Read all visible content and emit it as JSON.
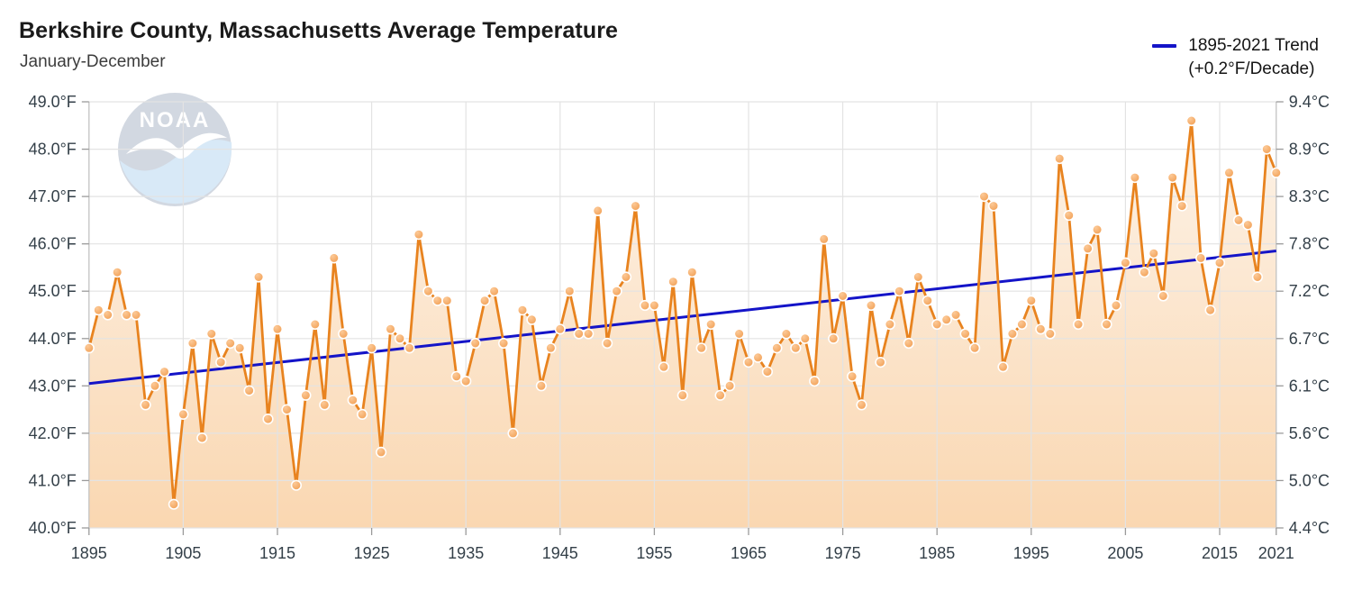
{
  "header": {
    "title": "Berkshire County, Massachusetts Average Temperature",
    "subtitle": "January-December"
  },
  "legend": {
    "line1": "1895-2021 Trend",
    "line2": "(+0.2°F/Decade)",
    "swatch_color": "#1414c8"
  },
  "watermark": {
    "name": "noaa-logo",
    "text": "NOAA"
  },
  "chart_data": {
    "type": "line",
    "title": "Berkshire County, Massachusetts Average Temperature",
    "subtitle": "January-December",
    "x_start": 1895,
    "x_end": 2021,
    "x_ticks": [
      1895,
      1905,
      1915,
      1925,
      1935,
      1945,
      1955,
      1965,
      1975,
      1985,
      1995,
      2005,
      2015,
      2021
    ],
    "y_min": 40,
    "y_max": 49,
    "y_axis_left": {
      "unit": "°F",
      "labels": [
        "49.0°F",
        "48.0°F",
        "47.0°F",
        "46.0°F",
        "45.0°F",
        "44.0°F",
        "43.0°F",
        "42.0°F",
        "41.0°F",
        "40.0°F"
      ]
    },
    "y_axis_right": {
      "unit": "°C",
      "labels": [
        "9.4°C",
        "8.9°C",
        "8.3°C",
        "7.8°C",
        "7.2°C",
        "6.7°C",
        "6.1°C",
        "5.6°C",
        "5.0°C",
        "4.4°C"
      ]
    },
    "series": [
      {
        "name": "Average Temperature (°F)",
        "values": [
          43.8,
          44.6,
          44.5,
          45.4,
          44.5,
          44.5,
          42.6,
          43.0,
          43.3,
          40.5,
          42.4,
          43.9,
          41.9,
          44.1,
          43.5,
          43.9,
          43.8,
          42.9,
          45.3,
          42.3,
          44.2,
          42.5,
          40.9,
          42.8,
          44.3,
          42.6,
          45.7,
          44.1,
          42.7,
          42.4,
          43.8,
          41.6,
          44.2,
          44.0,
          43.8,
          46.2,
          45.0,
          44.8,
          44.8,
          43.2,
          43.1,
          43.9,
          44.8,
          45.0,
          43.9,
          42.0,
          44.6,
          44.4,
          43.0,
          43.8,
          44.2,
          45.0,
          44.1,
          44.1,
          46.7,
          43.9,
          45.0,
          45.3,
          46.8,
          44.7,
          44.7,
          43.4,
          45.2,
          42.8,
          45.4,
          43.8,
          44.3,
          42.8,
          43.0,
          44.1,
          43.5,
          43.6,
          43.3,
          43.8,
          44.1,
          43.8,
          44.0,
          43.1,
          46.1,
          44.0,
          44.9,
          43.2,
          42.6,
          44.7,
          43.5,
          44.3,
          45.0,
          43.9,
          45.3,
          44.8,
          44.3,
          44.4,
          44.5,
          44.1,
          43.8,
          47.0,
          46.8,
          43.4,
          44.1,
          44.3,
          44.8,
          44.2,
          44.1,
          47.8,
          46.6,
          44.3,
          45.9,
          46.3,
          44.3,
          44.7,
          45.6,
          47.4,
          45.4,
          45.8,
          44.9,
          47.4,
          46.8,
          48.6,
          45.7,
          44.6,
          45.6,
          47.5,
          46.5,
          46.4,
          45.3,
          48.0,
          47.5
        ]
      }
    ],
    "trend": {
      "name": "1895-2021 Trend",
      "rate": "+0.2°F/Decade",
      "start_year": 1895,
      "start_value": 43.05,
      "end_year": 2021,
      "end_value": 45.85
    },
    "grid": true,
    "legend_position": "top-right",
    "colors": {
      "line": "#e8831f",
      "marker_light": "#fcc997",
      "marker_dark": "#f0994a",
      "marker_edge": "#ffffff",
      "area_top": "#fdf4ea",
      "area_bottom": "#fad7b1",
      "trend": "#1414c8",
      "grid": "#e3e3e3",
      "axis": "#c2c2c2",
      "tick": "#9a9a9a",
      "tick_label": "#333f48",
      "logo_navy": "#24406e",
      "logo_blue": "#4294da"
    }
  }
}
